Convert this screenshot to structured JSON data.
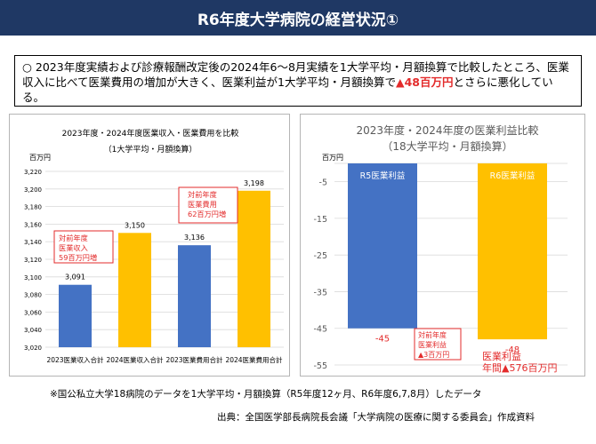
{
  "header": {
    "title": "R6年度大学病院の経営状況①"
  },
  "summary": {
    "line1": "○ 2023年度実績および診療報酬改定後の2024年6～8月実績を1大学平均・月額換算で比較したところ、医業収入に比べて医業費用の増加が大きく、医業利益が1大学平均・月額換算で",
    "highlight": "▲48百万円",
    "line2": "とさらに悪化している。"
  },
  "chart_data": [
    {
      "type": "bar",
      "title": "2023年度・2024年度医業収入・医業費用を比較",
      "subtitle": "（1大学平均・月額換算）",
      "ylabel": "百万円",
      "ylim": [
        3020,
        3220
      ],
      "yticks": [
        3020,
        3040,
        3060,
        3080,
        3100,
        3120,
        3140,
        3160,
        3180,
        3200,
        3220
      ],
      "ytick_labels": [
        "3,020",
        "3,040",
        "3,060",
        "3,080",
        "3,100",
        "3,120",
        "3,140",
        "3,160",
        "3,180",
        "3,200",
        "3,220"
      ],
      "categories": [
        "2023医業収入合計",
        "2024医業収入合計",
        "2023医業費用合計",
        "2024医業費用合計"
      ],
      "values": [
        3091,
        3150,
        3136,
        3198
      ],
      "value_labels": [
        "3,091",
        "3,150",
        "3,136",
        "3,198"
      ],
      "colors": [
        "#4472c4",
        "#ffc000",
        "#4472c4",
        "#ffc000"
      ],
      "annotations": [
        {
          "lines": [
            "対前年度",
            "医業収入",
            "59百万円増"
          ],
          "color": "#e32b2b"
        },
        {
          "lines": [
            "対前年度",
            "医業費用",
            "62百万円増"
          ],
          "color": "#e32b2b"
        }
      ]
    },
    {
      "type": "bar",
      "title": "2023年度・2024年度の医業利益比較",
      "subtitle": "（18大学平均・月額換算）",
      "ylabel": "百万円",
      "ylim": [
        -55,
        0
      ],
      "yticks": [
        -5,
        -15,
        -25,
        -35,
        -45,
        -55
      ],
      "ytick_labels": [
        "-5",
        "-15",
        "-25",
        "-35",
        "-45",
        "-55"
      ],
      "categories": [
        "R5医業利益",
        "R6医業利益"
      ],
      "values": [
        -45,
        -48
      ],
      "value_labels": [
        "-45",
        "-48"
      ],
      "colors": [
        "#4472c4",
        "#ffc000"
      ],
      "annotations": [
        {
          "lines": [
            "対前年度",
            "医業利益",
            "▲3百万円"
          ],
          "color": "#e32b2b"
        },
        {
          "lines": [
            "医業利益",
            "年間▲576百万円"
          ],
          "color": "#e32b2b"
        }
      ]
    }
  ],
  "footnote": "※国公私立大学18病院のデータを1大学平均・月額換算（R5年度12ヶ月、R6年度6,7,8月）したデータ",
  "source": "出典：全国医学部長病院長会議「大学病院の医療に関する委員会」作成資料"
}
